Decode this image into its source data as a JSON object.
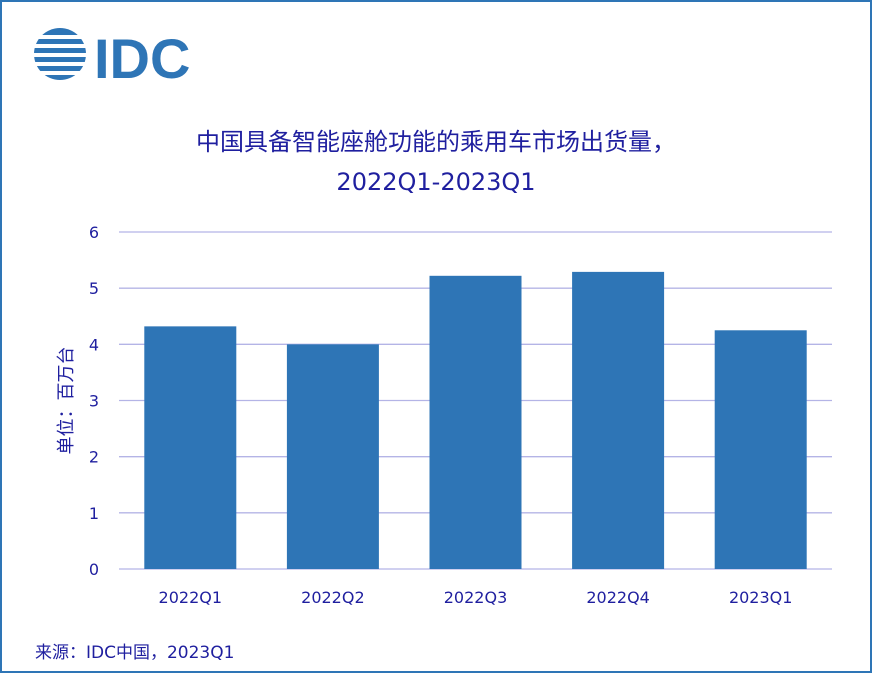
{
  "logo": {
    "text": "IDC",
    "color": "#2e75b6"
  },
  "source": "来源：IDC中国，2023Q1",
  "chart_data": {
    "type": "bar",
    "title": "中国具备智能座舱功能的乘用车市场出货量，",
    "subtitle": "2022Q1-2023Q1",
    "ylabel": "单位：百万台",
    "xlabel": "",
    "categories": [
      "2022Q1",
      "2022Q2",
      "2022Q3",
      "2022Q4",
      "2023Q1"
    ],
    "values": [
      4.32,
      4.0,
      5.22,
      5.29,
      4.25
    ],
    "ylim": [
      0,
      6
    ],
    "yticks": [
      0,
      1,
      2,
      3,
      4,
      5,
      6
    ],
    "grid": true,
    "colors": {
      "bar": "#2e75b6",
      "grid": "#b4b4e6",
      "text": "#1f1f9f"
    }
  }
}
